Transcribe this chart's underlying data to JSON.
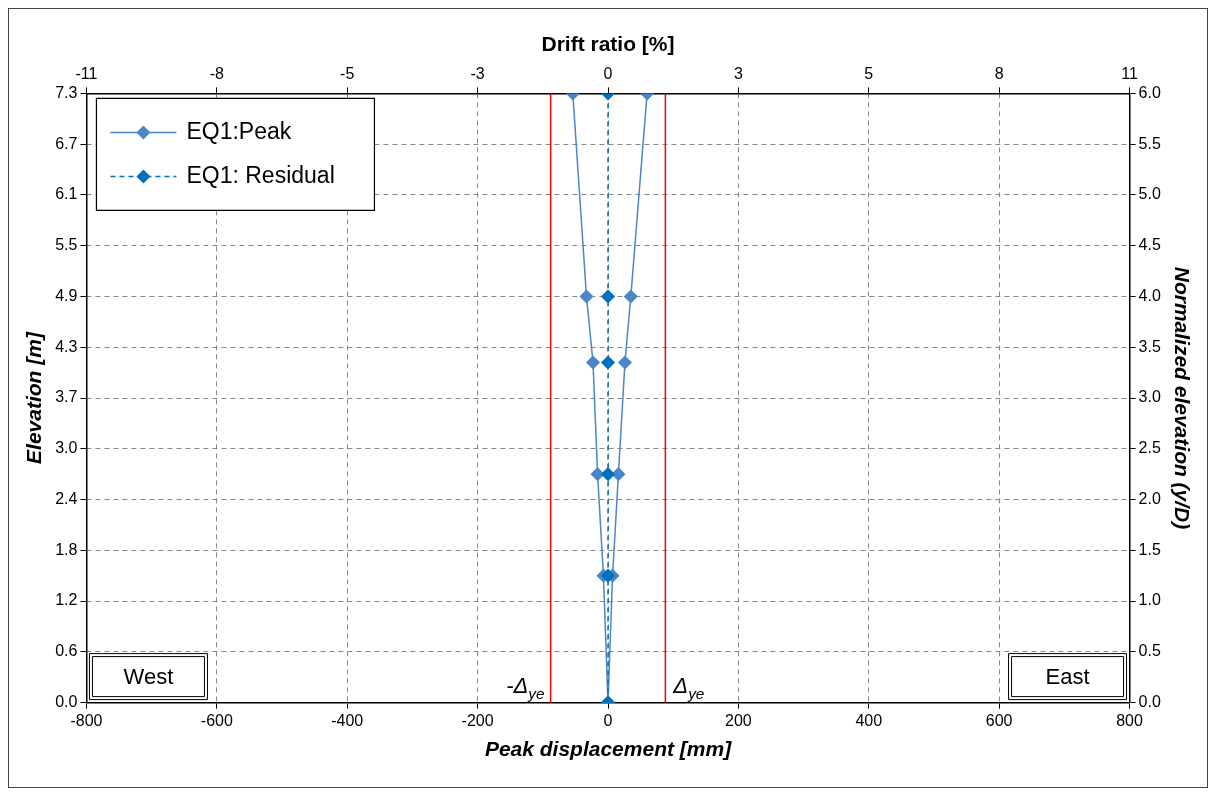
{
  "chart_data": {
    "type": "line",
    "xlabel": "Peak displacement [mm]",
    "x2label": "Drift ratio [%]",
    "ylabel": "Elevation [m]",
    "y2label": "Normalized elevation (y/D)",
    "series": [
      {
        "name": "EQ1:Peak",
        "color": "#4a86c8",
        "axis": "y2",
        "line_style": "solid",
        "x": [
          0,
          -7,
          -16,
          -23,
          -33,
          -54
        ],
        "values": [
          0,
          1.25,
          2.25,
          3.35,
          4,
          6
        ]
      },
      {
        "color": "#4a86c8",
        "axis": "y2",
        "line_style": "solid",
        "x": [
          0,
          7,
          16,
          26,
          35,
          60
        ],
        "values": [
          0,
          1.25,
          2.25,
          3.35,
          4,
          6
        ]
      },
      {
        "name": "EQ1: Residual",
        "color": "#0070c0",
        "axis": "y2",
        "line_style": "dashed",
        "x": [
          0,
          0,
          0,
          0,
          0,
          0
        ],
        "values": [
          0,
          1.25,
          2.25,
          3.35,
          4,
          6
        ]
      }
    ],
    "xlim": [
      -800,
      800
    ],
    "xticks": [
      -800,
      -600,
      -400,
      -200,
      0,
      200,
      400,
      600,
      800
    ],
    "x2lim": [
      -10.96,
      10.96
    ],
    "x2ticks": [
      {
        "value": -10.96,
        "label": "-11"
      },
      {
        "value": -8.22,
        "label": "-8"
      },
      {
        "value": -5.48,
        "label": "-5"
      },
      {
        "value": -2.74,
        "label": "-3"
      },
      0,
      {
        "value": 2.74,
        "label": "3"
      },
      {
        "value": 5.48,
        "label": "5"
      },
      {
        "value": 8.22,
        "label": "8"
      },
      {
        "value": 10.96,
        "label": "11"
      }
    ],
    "ylim": [
      0,
      7.3
    ],
    "yticks": [
      {
        "value": 0,
        "label": "0.0"
      },
      {
        "value": 0.608,
        "label": "0.6"
      },
      {
        "value": 1.217,
        "label": "1.2"
      },
      {
        "value": 1.825,
        "label": "1.8"
      },
      {
        "value": 2.433,
        "label": "2.4"
      },
      {
        "value": 3.042,
        "label": "3.0"
      },
      {
        "value": 3.65,
        "label": "3.7"
      },
      {
        "value": 4.258,
        "label": "4.3"
      },
      {
        "value": 4.867,
        "label": "4.9"
      },
      {
        "value": 5.475,
        "label": "5.5"
      },
      {
        "value": 6.083,
        "label": "6.1"
      },
      {
        "value": 6.692,
        "label": "6.7"
      },
      {
        "value": 7.3,
        "label": "7.3"
      }
    ],
    "y2lim": [
      0,
      6
    ],
    "y2ticks": [
      {
        "value": 0,
        "label": "0.0"
      },
      0.5,
      {
        "value": 1,
        "label": "1.0"
      },
      1.5,
      {
        "value": 2,
        "label": "2.0"
      },
      2.5,
      {
        "value": 3,
        "label": "3.0"
      },
      3.5,
      {
        "value": 4,
        "label": "4.0"
      },
      4.5,
      {
        "value": 5,
        "label": "5.0"
      },
      5.5,
      {
        "value": 6,
        "label": "6.0"
      }
    ],
    "ref_lines": [
      {
        "axis": "x",
        "value": -88,
        "label": "-Δ$_{ye}$",
        "color": "#ff0000"
      },
      {
        "axis": "x",
        "value": 88,
        "label": "Δ$_{ye}$",
        "color": "#ff0000"
      }
    ],
    "annotations": [
      "West",
      "East"
    ],
    "grid": true,
    "legend": "top left",
    "marker": "diamond"
  }
}
